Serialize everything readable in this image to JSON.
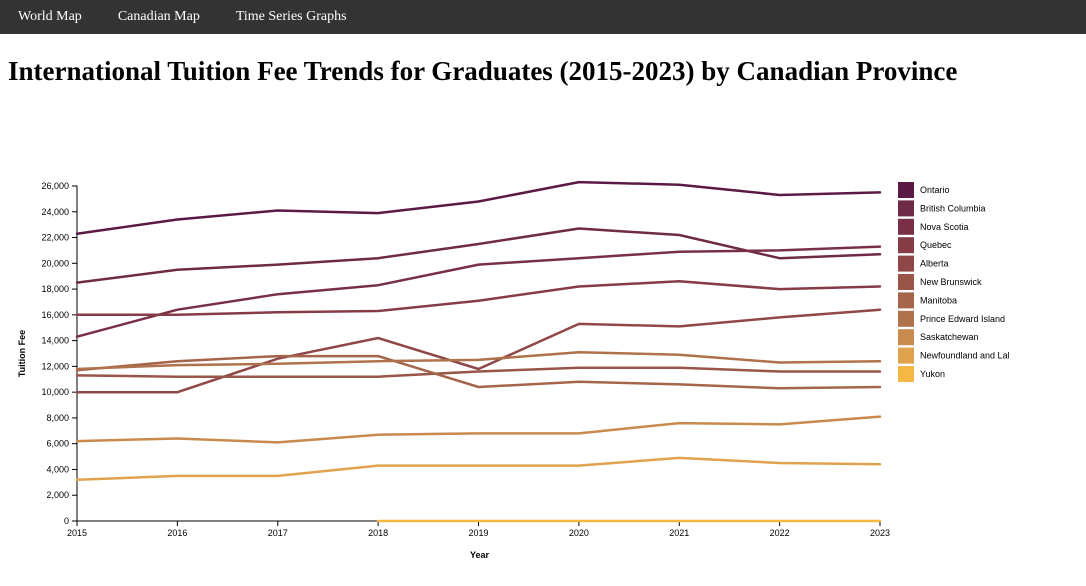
{
  "nav": {
    "items": [
      "World Map",
      "Canadian Map",
      "Time Series Graphs"
    ],
    "bg_color": "#333333"
  },
  "page": {
    "title": "International Tuition Fee Trends for Graduates (2015-2023) by Canadian Province"
  },
  "chart_data": {
    "type": "line",
    "x": [
      2015,
      2016,
      2017,
      2018,
      2019,
      2020,
      2021,
      2022,
      2023
    ],
    "xlabel": "Year",
    "ylabel": "Tuition Fee",
    "ylim": [
      0,
      26000
    ],
    "yticks": [
      0,
      2000,
      4000,
      6000,
      8000,
      10000,
      12000,
      14000,
      16000,
      18000,
      20000,
      22000,
      24000,
      26000
    ],
    "grid": false,
    "legend_position": "right",
    "series": [
      {
        "name": "Ontario",
        "color": "#5b1a44",
        "values": [
          22300,
          23400,
          24100,
          23900,
          24800,
          26300,
          26100,
          25300,
          25500
        ]
      },
      {
        "name": "British Columbia",
        "color": "#6e2a46",
        "values": [
          18500,
          19500,
          19900,
          20400,
          21500,
          22700,
          22200,
          20400,
          20700
        ]
      },
      {
        "name": "Nova Scotia",
        "color": "#793046",
        "values": [
          14300,
          16400,
          17600,
          18300,
          19900,
          20400,
          20900,
          21000,
          21300
        ]
      },
      {
        "name": "Quebec",
        "color": "#853c47",
        "values": [
          16000,
          16000,
          16200,
          16300,
          17100,
          18200,
          18600,
          18000,
          18200
        ]
      },
      {
        "name": "Alberta",
        "color": "#8f4747",
        "values": [
          10000,
          10000,
          12600,
          14200,
          11800,
          15300,
          15100,
          15800,
          16400
        ]
      },
      {
        "name": "New Brunswick",
        "color": "#995548",
        "values": [
          11300,
          11200,
          11200,
          11200,
          11600,
          11900,
          11900,
          11600,
          11600
        ]
      },
      {
        "name": "Manitoba",
        "color": "#a4654a",
        "values": [
          11700,
          12400,
          12800,
          12800,
          10400,
          10800,
          10600,
          10300,
          10400
        ]
      },
      {
        "name": "Prince Edward Island",
        "color": "#b0724c",
        "values": [
          11800,
          12100,
          12200,
          12400,
          12500,
          13100,
          12900,
          12300,
          12400
        ]
      },
      {
        "name": "Saskatchewan",
        "color": "#c98a4e",
        "values": [
          6200,
          6400,
          6100,
          6700,
          6800,
          6800,
          7600,
          7500,
          8100
        ]
      },
      {
        "name": "Newfoundland and Lal",
        "color": "#e0a24c",
        "values": [
          3200,
          3500,
          3500,
          4300,
          4300,
          4300,
          4900,
          4500,
          4400
        ]
      },
      {
        "name": "Yukon",
        "color": "#f5b845",
        "values": [
          null,
          null,
          null,
          0,
          0,
          0,
          0,
          0,
          0
        ]
      }
    ]
  }
}
